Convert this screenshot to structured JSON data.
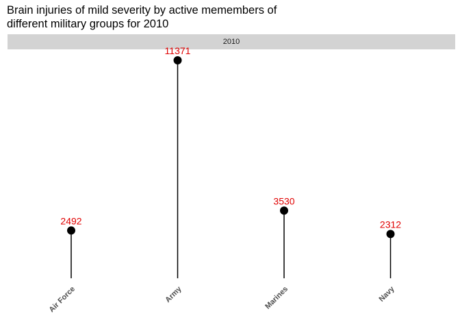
{
  "chart_data": {
    "type": "lollipop",
    "title_lines": [
      "Brain injuries of mild severity by active memembers of",
      "different military groups for 2010"
    ],
    "facet_label": "2010",
    "categories": [
      "Air Force",
      "Army",
      "Marines",
      "Navy"
    ],
    "values": [
      2492,
      11371,
      3530,
      2312
    ],
    "value_label_color": "#e00000",
    "point_color": "#000000",
    "segment_color": "#000000",
    "grid": false,
    "ylim": [
      0,
      11371
    ]
  }
}
